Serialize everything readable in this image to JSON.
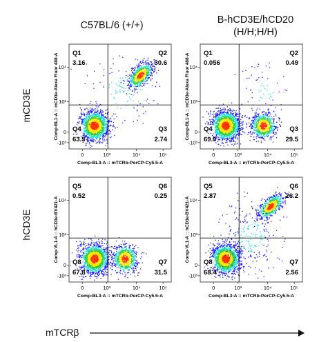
{
  "headers": {
    "col1": "C57BL/6 (+/+)",
    "col2_line1": "B-hCD3E/hCD20",
    "col2_line2": "(H/H;H/H)"
  },
  "row_labels": {
    "row1": "mCD3E",
    "row2": "hCD3E"
  },
  "x_axis_title": "mTCRβ",
  "chart_data": [
    {
      "type": "scatter",
      "panel": "top-left",
      "xlabel": "Comp-BL3-A :: mTCRb-PerCP-Cy5.5-A",
      "ylabel": "Comp-BL1-A :: mCD3e-Alexa Fluor 488-A",
      "x_ticks": [
        "0",
        "10³",
        "10⁴",
        "10⁵"
      ],
      "y_ticks": [
        "-10³",
        "0",
        "10³",
        "10⁴"
      ],
      "quadrants": [
        {
          "id": "Q1",
          "value": "3.16"
        },
        {
          "id": "Q2",
          "value": "30.6"
        },
        {
          "id": "Q3",
          "value": "2.74"
        },
        {
          "id": "Q4",
          "value": "63.5"
        }
      ],
      "populations": [
        {
          "x": 0.25,
          "y": 0.22,
          "sx": 0.07,
          "sy": 0.07,
          "n": 1600
        },
        {
          "x": 0.7,
          "y": 0.7,
          "sx": 0.06,
          "sy": 0.05,
          "n": 700,
          "tilt": 0.8
        },
        {
          "x": 0.55,
          "y": 0.55,
          "sx": 0.18,
          "sy": 0.18,
          "n": 120
        }
      ]
    },
    {
      "type": "scatter",
      "panel": "top-right",
      "xlabel": "Comp-BL3-A :: mTCRb-PerCP-Cy5.5-A",
      "ylabel": "Comp-BL1-A :: mCD3e-Alexa Fluor 488-A",
      "x_ticks": [
        "0",
        "10³",
        "10⁴",
        "10⁵"
      ],
      "y_ticks": [
        "-10³",
        "0",
        "10³",
        "10⁴"
      ],
      "quadrants": [
        {
          "id": "Q1",
          "value": "0.056"
        },
        {
          "id": "Q2",
          "value": "0.49"
        },
        {
          "id": "Q3",
          "value": "29.5"
        },
        {
          "id": "Q4",
          "value": "69.9"
        }
      ],
      "populations": [
        {
          "x": 0.25,
          "y": 0.22,
          "sx": 0.07,
          "sy": 0.07,
          "n": 1700
        },
        {
          "x": 0.62,
          "y": 0.22,
          "sx": 0.06,
          "sy": 0.06,
          "n": 800
        },
        {
          "x": 0.62,
          "y": 0.55,
          "sx": 0.1,
          "sy": 0.12,
          "n": 60
        }
      ]
    },
    {
      "type": "scatter",
      "panel": "bottom-left",
      "xlabel": "Comp-BL3-A :: mTCRb-PerCP-Cy5.5-A",
      "ylabel": "Comp-VL1-A :: hCD3e-BV421-A",
      "x_ticks": [
        "0",
        "10³",
        "10⁴",
        "10⁵"
      ],
      "y_ticks": [
        "-10³",
        "0",
        "10³",
        "10⁴"
      ],
      "quadrants": [
        {
          "id": "Q5",
          "value": "0.52"
        },
        {
          "id": "Q6",
          "value": "0.25"
        },
        {
          "id": "Q7",
          "value": "31.5"
        },
        {
          "id": "Q8",
          "value": "67.8"
        }
      ],
      "populations": [
        {
          "x": 0.25,
          "y": 0.22,
          "sx": 0.07,
          "sy": 0.07,
          "n": 1700
        },
        {
          "x": 0.55,
          "y": 0.22,
          "sx": 0.06,
          "sy": 0.065,
          "n": 800
        }
      ]
    },
    {
      "type": "scatter",
      "panel": "bottom-right",
      "xlabel": "Comp-BL3-A :: mTCRb-PerCP-Cy5.5-A",
      "ylabel": "Comp-VL1-A :: hCD3e-BV421-A",
      "x_ticks": [
        "0",
        "10³",
        "10⁴",
        "10⁵"
      ],
      "y_ticks": [
        "-10³",
        "0",
        "10³",
        "10⁴"
      ],
      "quadrants": [
        {
          "id": "Q5",
          "value": "2.87"
        },
        {
          "id": "Q6",
          "value": "26.2"
        },
        {
          "id": "Q7",
          "value": "2.56"
        },
        {
          "id": "Q8",
          "value": "68.4"
        }
      ],
      "populations": [
        {
          "x": 0.25,
          "y": 0.22,
          "sx": 0.07,
          "sy": 0.07,
          "n": 1600
        },
        {
          "x": 0.69,
          "y": 0.72,
          "sx": 0.06,
          "sy": 0.045,
          "n": 700,
          "tilt": 0.8
        },
        {
          "x": 0.5,
          "y": 0.42,
          "sx": 0.14,
          "sy": 0.16,
          "n": 250
        }
      ]
    }
  ],
  "colors": {
    "density_low": "#1a1aff",
    "density_mid": "#1ee0e0",
    "density_mid2": "#2ecc40",
    "density_high": "#ffe600",
    "density_peak": "#ff3300",
    "gate_line": "#111111"
  }
}
